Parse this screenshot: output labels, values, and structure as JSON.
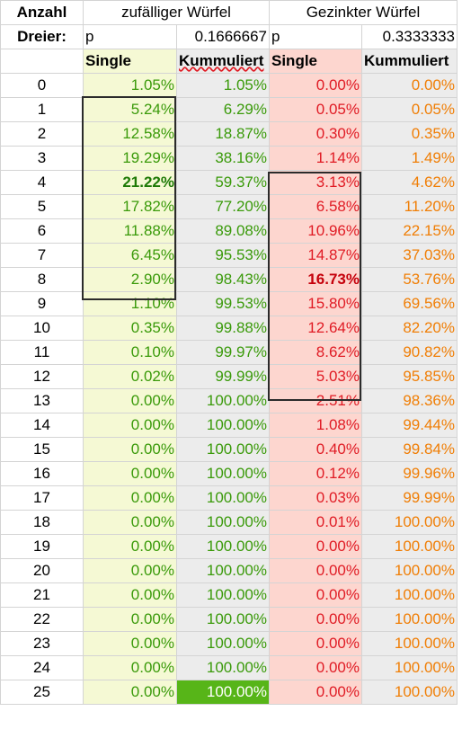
{
  "header1": {
    "anzahl": "Anzahl",
    "fair": "zufälliger Würfel",
    "loaded": "Gezinkter Würfel"
  },
  "header2": {
    "dreier": "Dreier:",
    "p_fair_label": "p",
    "p_fair_value": "0.1666667",
    "p_loaded_label": "p",
    "p_loaded_value": "0.3333333"
  },
  "header3": {
    "single_fair": "Single",
    "cum_fair": "Kummuliert",
    "single_loaded": "Single",
    "cum_loaded": "Kummuliert"
  },
  "rows": [
    {
      "n": "0",
      "s1": "1.05%",
      "c1": "1.05%",
      "s2": "0.00%",
      "c2": "0.00%"
    },
    {
      "n": "1",
      "s1": "5.24%",
      "c1": "6.29%",
      "s2": "0.05%",
      "c2": "0.05%"
    },
    {
      "n": "2",
      "s1": "12.58%",
      "c1": "18.87%",
      "s2": "0.30%",
      "c2": "0.35%"
    },
    {
      "n": "3",
      "s1": "19.29%",
      "c1": "38.16%",
      "s2": "1.14%",
      "c2": "1.49%"
    },
    {
      "n": "4",
      "s1": "21.22%",
      "c1": "59.37%",
      "s2": "3.13%",
      "c2": "4.62%"
    },
    {
      "n": "5",
      "s1": "17.82%",
      "c1": "77.20%",
      "s2": "6.58%",
      "c2": "11.20%"
    },
    {
      "n": "6",
      "s1": "11.88%",
      "c1": "89.08%",
      "s2": "10.96%",
      "c2": "22.15%"
    },
    {
      "n": "7",
      "s1": "6.45%",
      "c1": "95.53%",
      "s2": "14.87%",
      "c2": "37.03%"
    },
    {
      "n": "8",
      "s1": "2.90%",
      "c1": "98.43%",
      "s2": "16.73%",
      "c2": "53.76%"
    },
    {
      "n": "9",
      "s1": "1.10%",
      "c1": "99.53%",
      "s2": "15.80%",
      "c2": "69.56%"
    },
    {
      "n": "10",
      "s1": "0.35%",
      "c1": "99.88%",
      "s2": "12.64%",
      "c2": "82.20%"
    },
    {
      "n": "11",
      "s1": "0.10%",
      "c1": "99.97%",
      "s2": "8.62%",
      "c2": "90.82%"
    },
    {
      "n": "12",
      "s1": "0.02%",
      "c1": "99.99%",
      "s2": "5.03%",
      "c2": "95.85%"
    },
    {
      "n": "13",
      "s1": "0.00%",
      "c1": "100.00%",
      "s2": "2.51%",
      "c2": "98.36%"
    },
    {
      "n": "14",
      "s1": "0.00%",
      "c1": "100.00%",
      "s2": "1.08%",
      "c2": "99.44%"
    },
    {
      "n": "15",
      "s1": "0.00%",
      "c1": "100.00%",
      "s2": "0.40%",
      "c2": "99.84%"
    },
    {
      "n": "16",
      "s1": "0.00%",
      "c1": "100.00%",
      "s2": "0.12%",
      "c2": "99.96%"
    },
    {
      "n": "17",
      "s1": "0.00%",
      "c1": "100.00%",
      "s2": "0.03%",
      "c2": "99.99%"
    },
    {
      "n": "18",
      "s1": "0.00%",
      "c1": "100.00%",
      "s2": "0.01%",
      "c2": "100.00%"
    },
    {
      "n": "19",
      "s1": "0.00%",
      "c1": "100.00%",
      "s2": "0.00%",
      "c2": "100.00%"
    },
    {
      "n": "20",
      "s1": "0.00%",
      "c1": "100.00%",
      "s2": "0.00%",
      "c2": "100.00%"
    },
    {
      "n": "21",
      "s1": "0.00%",
      "c1": "100.00%",
      "s2": "0.00%",
      "c2": "100.00%"
    },
    {
      "n": "22",
      "s1": "0.00%",
      "c1": "100.00%",
      "s2": "0.00%",
      "c2": "100.00%"
    },
    {
      "n": "23",
      "s1": "0.00%",
      "c1": "100.00%",
      "s2": "0.00%",
      "c2": "100.00%"
    },
    {
      "n": "24",
      "s1": "0.00%",
      "c1": "100.00%",
      "s2": "0.00%",
      "c2": "100.00%"
    },
    {
      "n": "25",
      "s1": "0.00%",
      "c1": "100.00%",
      "s2": "0.00%",
      "c2": "100.00%"
    }
  ],
  "highlights": {
    "max_fair_row": 4,
    "max_loaded_row": 8,
    "selected_cell_row": 25
  },
  "colors": {
    "fair_single_bg": "#f5f9d4",
    "cumulative_bg": "#ececec",
    "loaded_single_bg": "#fdd6cf",
    "fair_text": "#3a9a0a",
    "loaded_single_text": "#e01b24",
    "loaded_cum_text": "#f07e05",
    "selected_cell_bg": "#57b518"
  }
}
